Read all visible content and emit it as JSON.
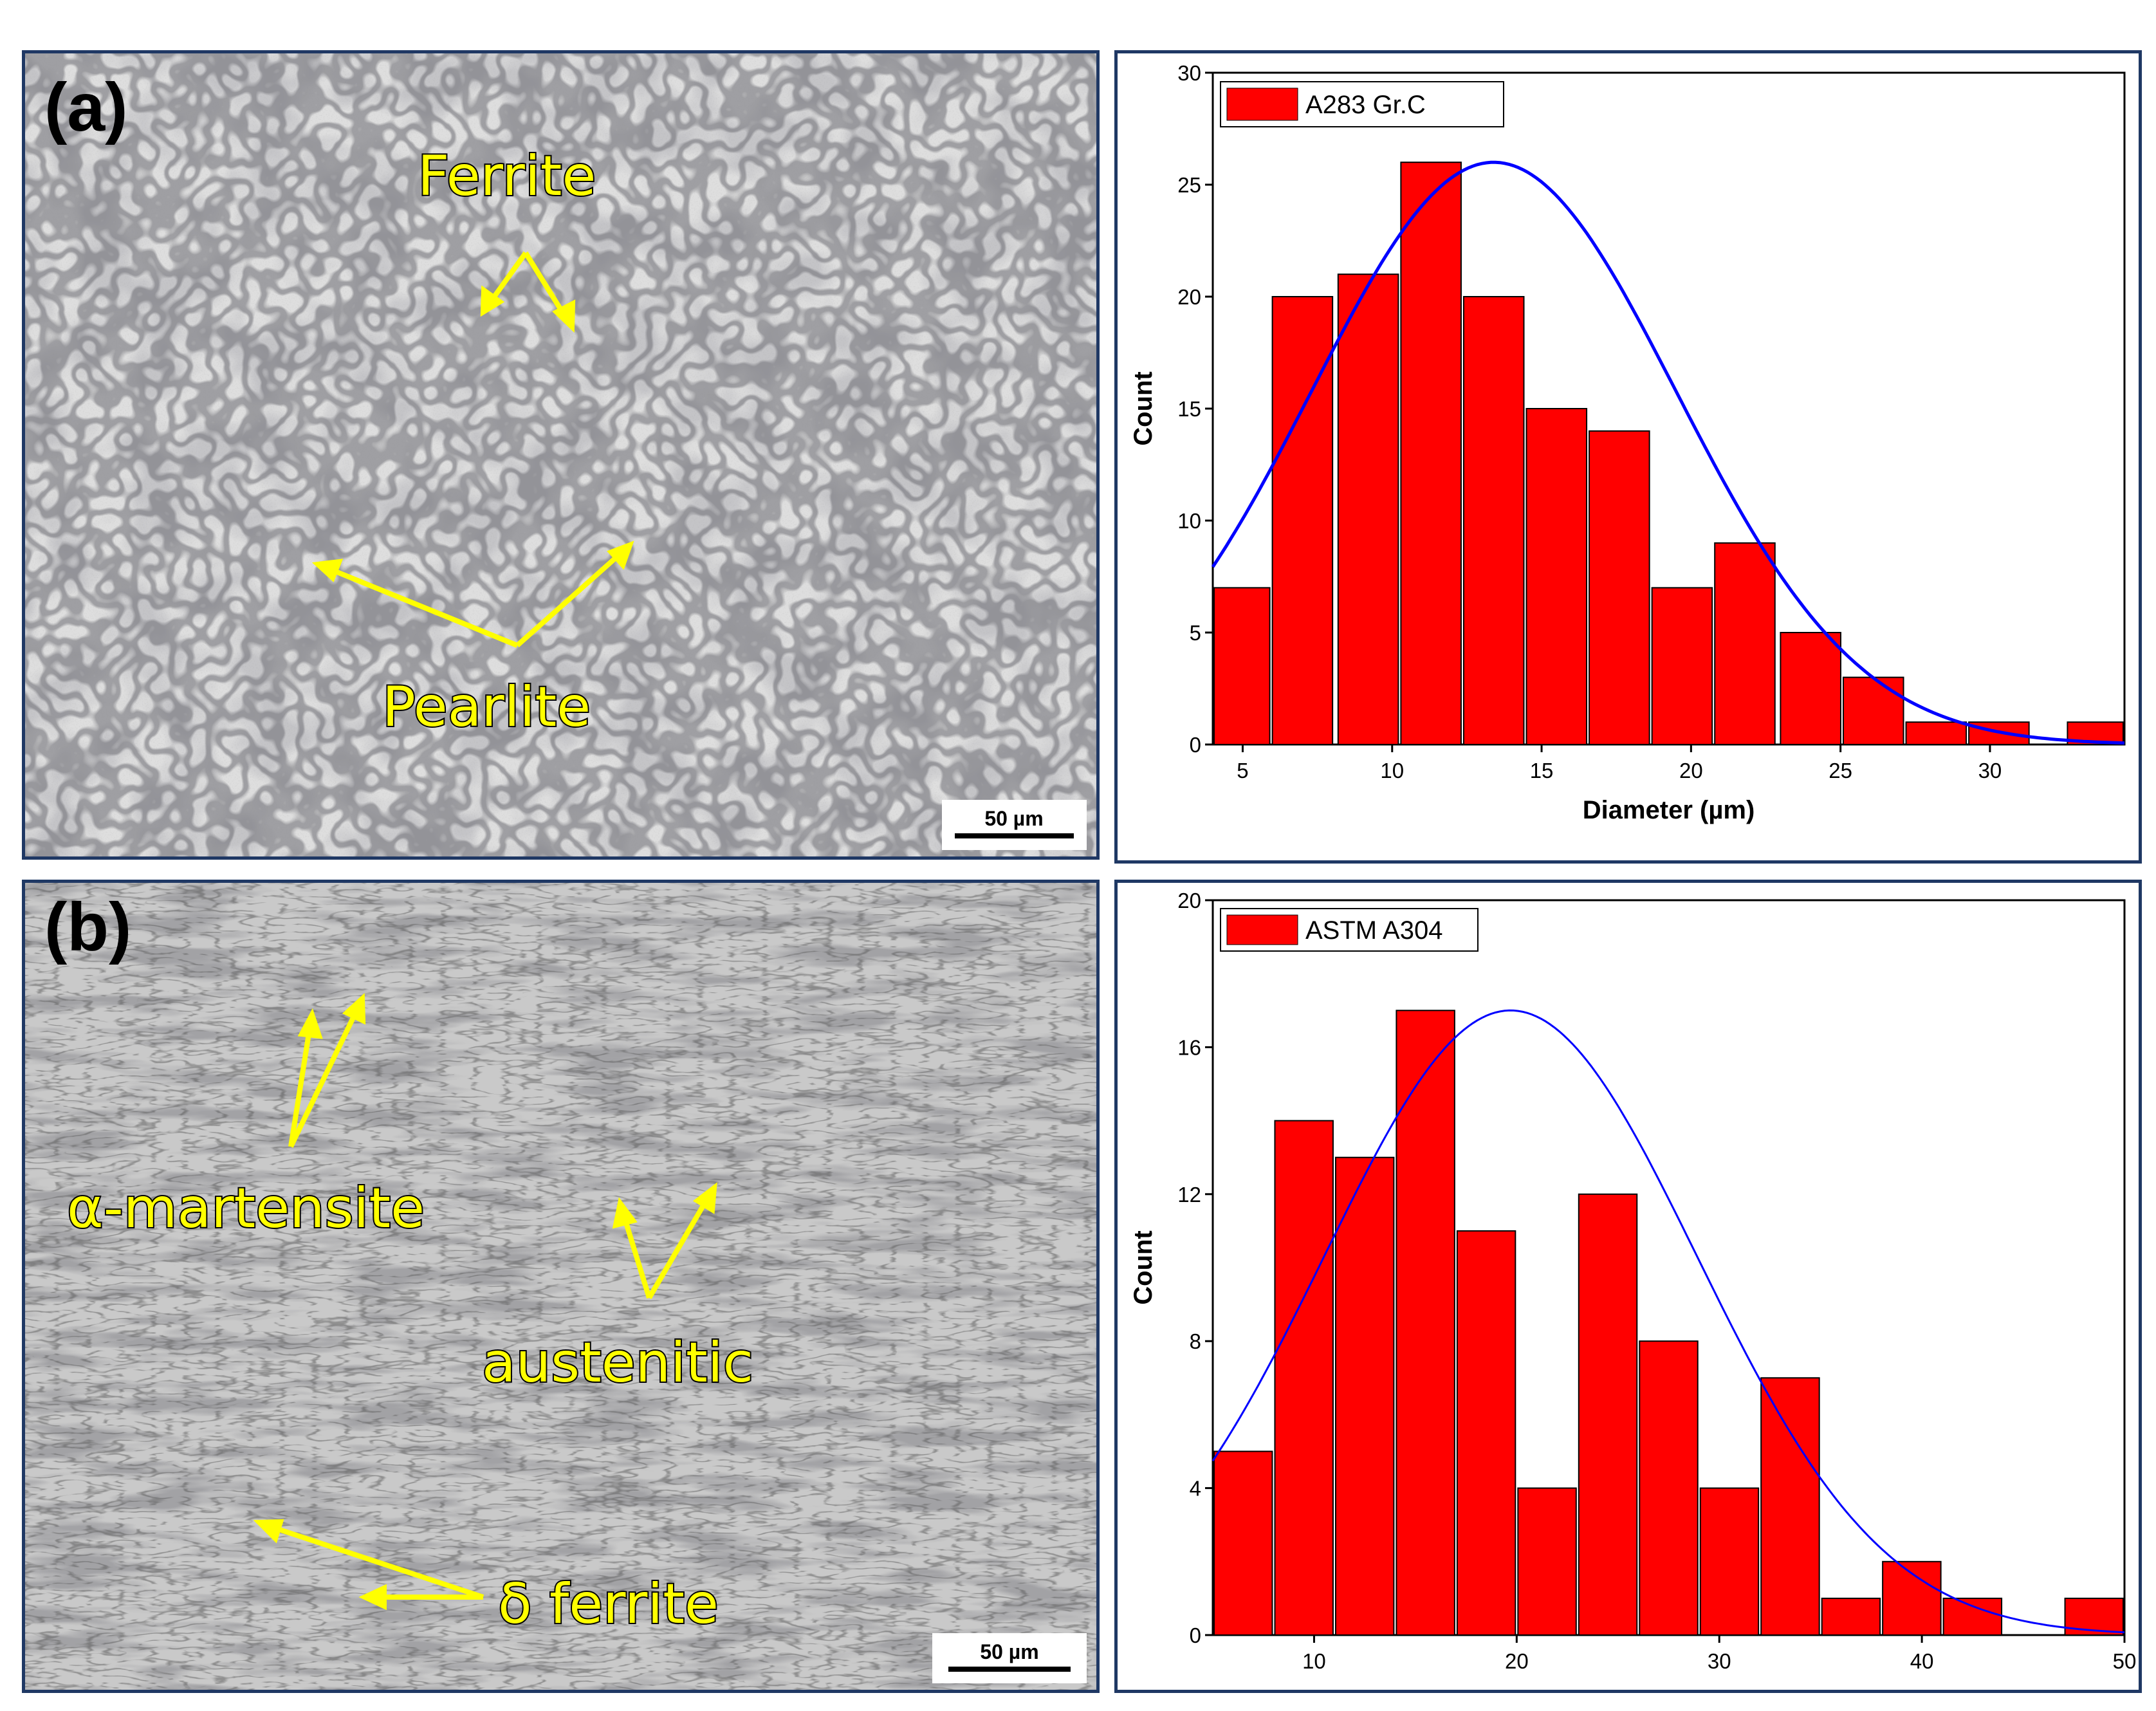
{
  "panel_a": {
    "tag": "(a)",
    "phase_labels": [
      "Ferrite",
      "Pearlite"
    ],
    "scale_bar": "50 µm"
  },
  "panel_b": {
    "tag": "(b)",
    "phase_labels": [
      "α-martensite",
      "austenitic",
      "δ ferrite"
    ],
    "scale_bar": "50 µm"
  },
  "colors": {
    "bar": "#ff0000",
    "bar_edge": "#000000",
    "fit_curve": "#0000ff",
    "arrow": "#ffff00",
    "frame": "#1f3864"
  },
  "chart_data": [
    {
      "type": "bar",
      "legend": "A283 Gr.C",
      "legend_position": "top-left",
      "xlabel": "Diameter (µm)",
      "ylabel": "Count",
      "xlim": [
        4,
        34.5
      ],
      "ylim": [
        0,
        30
      ],
      "xticks": [
        5,
        10,
        15,
        20,
        25,
        30
      ],
      "yticks": [
        0,
        5,
        10,
        15,
        20,
        25,
        30
      ],
      "bin_width": 2.1,
      "bin_centers": [
        4.9,
        7.0,
        9.2,
        11.3,
        13.4,
        15.5,
        17.6,
        19.7,
        21.8,
        24.0,
        26.1,
        28.2,
        30.3,
        33.6
      ],
      "values": [
        7,
        20,
        21,
        26,
        20,
        15,
        14,
        7,
        9,
        5,
        3,
        1,
        1,
        1
      ],
      "fit": {
        "type": "normal",
        "mean": 13.4,
        "sd": 6.1,
        "peak": 26
      }
    },
    {
      "type": "bar",
      "legend": "ASTM A304",
      "legend_position": "top-left",
      "xlabel": "Diameter (µm)",
      "ylabel": "Count",
      "xlim": [
        5,
        50
      ],
      "ylim": [
        0,
        20
      ],
      "xticks": [
        10,
        20,
        30,
        40,
        50
      ],
      "yticks": [
        0,
        4,
        8,
        12,
        16,
        20
      ],
      "bin_width": 3.0,
      "bin_centers": [
        6.5,
        9.5,
        12.5,
        15.5,
        18.5,
        21.5,
        24.5,
        27.5,
        30.5,
        33.5,
        36.5,
        39.5,
        42.5,
        48.5
      ],
      "values": [
        5,
        14,
        13,
        17,
        11,
        4,
        12,
        8,
        4,
        7,
        1,
        2,
        1,
        1
      ],
      "fit": {
        "type": "normal",
        "mean": 19.7,
        "sd": 9.2,
        "peak": 17
      }
    }
  ]
}
